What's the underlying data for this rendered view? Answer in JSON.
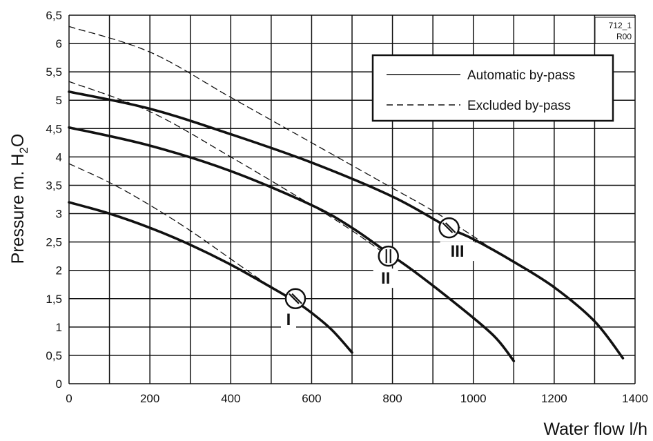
{
  "chart_data": {
    "type": "line",
    "xlabel": "Water flow l/h",
    "ylabel_main": "Pressure m. H",
    "ylabel_sub": "2",
    "ylabel_end": "O",
    "xlim": [
      0,
      1400
    ],
    "ylim": [
      0,
      6.5
    ],
    "x_ticks": [
      0,
      200,
      400,
      600,
      800,
      1000,
      1200,
      1400
    ],
    "x_tick_labels": [
      "0",
      "200",
      "400",
      "600",
      "800",
      "1000",
      "1200",
      "1400"
    ],
    "y_ticks": [
      0,
      0.5,
      1,
      1.5,
      2,
      2.5,
      3,
      3.5,
      4,
      4.5,
      5,
      5.5,
      6,
      6.5
    ],
    "y_tick_labels": [
      "0",
      "0,5",
      "1",
      "1,5",
      "2",
      "2,5",
      "3",
      "3,5",
      "4",
      "4,5",
      "5",
      "5,5",
      "6",
      "6,5"
    ],
    "grid": true,
    "legend_position": "top-right",
    "legend": [
      {
        "label": "Automatic by-pass",
        "style": "solid"
      },
      {
        "label": "Excluded by-pass",
        "style": "dashed"
      }
    ],
    "code_box": [
      "712_1",
      "R00"
    ],
    "series": [
      {
        "label": "I",
        "style": "solid",
        "x": [
          0,
          100,
          200,
          300,
          400,
          500,
          560,
          600,
          650,
          700
        ],
        "y": [
          3.2,
          3.0,
          2.75,
          2.45,
          2.1,
          1.7,
          1.45,
          1.25,
          0.95,
          0.55
        ]
      },
      {
        "label": "II",
        "style": "solid",
        "x": [
          0,
          200,
          400,
          600,
          700,
          790,
          850,
          950,
          1050,
          1100
        ],
        "y": [
          4.52,
          4.2,
          3.75,
          3.15,
          2.75,
          2.3,
          2.0,
          1.45,
          0.85,
          0.4
        ]
      },
      {
        "label": "III",
        "style": "solid",
        "x": [
          0,
          200,
          400,
          600,
          800,
          940,
          1000,
          1100,
          1200,
          1300,
          1370
        ],
        "y": [
          5.15,
          4.85,
          4.4,
          3.9,
          3.3,
          2.75,
          2.55,
          2.15,
          1.7,
          1.1,
          0.45
        ]
      },
      {
        "label": "I",
        "style": "dashed",
        "x": [
          0,
          100,
          200,
          300,
          400,
          470,
          520
        ],
        "y": [
          3.88,
          3.55,
          3.15,
          2.7,
          2.2,
          1.85,
          1.6
        ]
      },
      {
        "label": "II",
        "style": "dashed",
        "x": [
          0,
          200,
          400,
          600,
          700,
          780
        ],
        "y": [
          5.33,
          4.8,
          4.0,
          3.15,
          2.7,
          2.3
        ]
      },
      {
        "label": "III",
        "style": "dashed",
        "x": [
          0,
          200,
          400,
          600,
          800,
          900,
          1000,
          1050
        ],
        "y": [
          6.3,
          5.85,
          5.05,
          4.25,
          3.45,
          3.05,
          2.6,
          2.35
        ]
      }
    ],
    "markers": [
      {
        "label": "I",
        "x": 560,
        "y": 1.5
      },
      {
        "label": "II",
        "x": 790,
        "y": 2.25
      },
      {
        "label": "III",
        "x": 940,
        "y": 2.75
      }
    ]
  }
}
